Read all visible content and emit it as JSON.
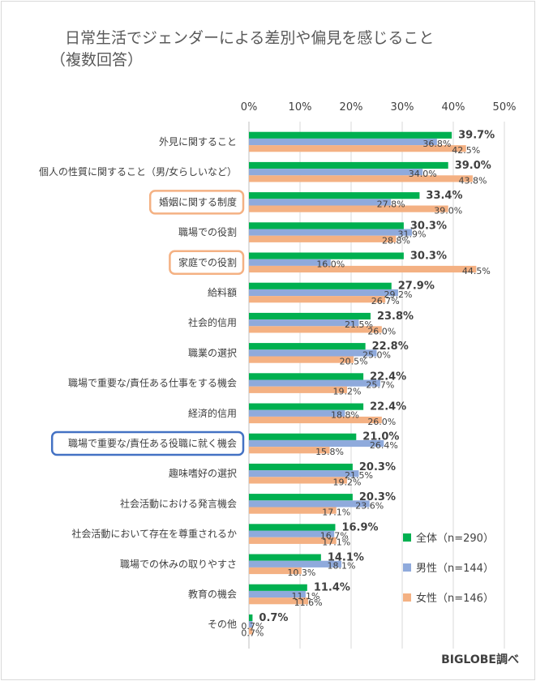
{
  "chart_data": {
    "type": "bar",
    "orientation": "horizontal",
    "title": "日常生活でジェンダーによる差別や偏見を感じること",
    "subtitle": "（複数回答）",
    "xlim": [
      0,
      50
    ],
    "x_ticks": [
      "0%",
      "10%",
      "20%",
      "30%",
      "40%",
      "50%"
    ],
    "grid": true,
    "legend_position": "bottom-right",
    "categories": [
      "外見に関すること",
      "個人の性質に関すること（男/女らしいなど）",
      "婚姻に関する制度",
      "職場での役割",
      "家庭での役割",
      "給料額",
      "社会的信用",
      "職業の選択",
      "職場で重要な/責任ある仕事をする機会",
      "経済的信用",
      "職場で重要な/責任ある役職に就く機会",
      "趣味嗜好の選択",
      "社会活動における発言機会",
      "社会活動において存在を尊重されるか",
      "職場での休みの取りやすさ",
      "教育の機会",
      "その他"
    ],
    "highlighted_orange": [
      "婚姻に関する制度",
      "家庭での役割"
    ],
    "highlighted_blue": [
      "職場で重要な/責任ある役職に就く機会"
    ],
    "series": [
      {
        "name": "全体（n=290）",
        "color": "#00b050",
        "values": [
          39.7,
          39.0,
          33.4,
          30.3,
          30.3,
          27.9,
          23.8,
          22.8,
          22.4,
          22.4,
          21.0,
          20.3,
          20.3,
          16.9,
          14.1,
          11.4,
          0.7
        ],
        "labels": [
          "39.7%",
          "39.0%",
          "33.4%",
          "30.3%",
          "30.3%",
          "27.9%",
          "23.8%",
          "22.8%",
          "22.4%",
          "22.4%",
          "21.0%",
          "20.3%",
          "20.3%",
          "16.9%",
          "14.1%",
          "11.4%",
          "0.7%"
        ]
      },
      {
        "name": "男性（n=144）",
        "color": "#8faadc",
        "values": [
          36.8,
          34.0,
          27.8,
          31.9,
          16.0,
          29.2,
          21.5,
          25.0,
          25.7,
          18.8,
          26.4,
          21.5,
          23.6,
          16.7,
          18.1,
          11.1,
          0.7
        ],
        "labels": [
          "36.8%",
          "34.0%",
          "27.8%",
          "31.9%",
          "16.0%",
          "29.2%",
          "21.5%",
          "25.0%",
          "25.7%",
          "18.8%",
          "26.4%",
          "21.5%",
          "23.6%",
          "16.7%",
          "18.1%",
          "11.1%",
          "0.7%"
        ]
      },
      {
        "name": "女性（n=146）",
        "color": "#f4b183",
        "values": [
          42.5,
          43.8,
          39.0,
          28.8,
          44.5,
          26.7,
          26.0,
          20.5,
          19.2,
          26.0,
          15.8,
          19.2,
          17.1,
          17.1,
          10.3,
          11.6,
          0.7
        ],
        "labels": [
          "42.5%",
          "43.8%",
          "39.0%",
          "28.8%",
          "44.5%",
          "26.7%",
          "26.0%",
          "20.5%",
          "19.2%",
          "26.0%",
          "15.8%",
          "19.2%",
          "17.1%",
          "17.1%",
          "10.3%",
          "11.6%",
          "0.7%"
        ]
      }
    ]
  },
  "source": "BIGLOBE調べ"
}
